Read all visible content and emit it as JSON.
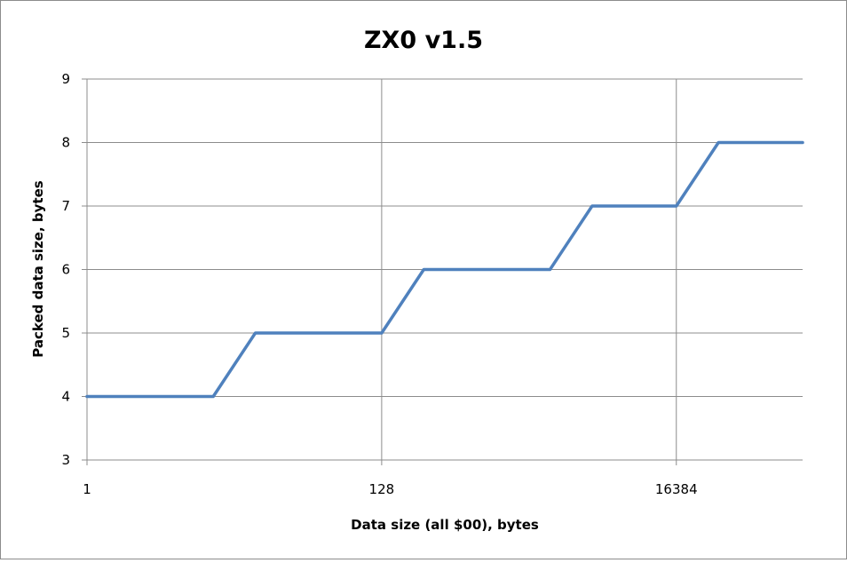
{
  "chart_data": {
    "type": "line",
    "title": "ZX0 v1.5",
    "xlabel": "Data size (all $00), bytes",
    "ylabel": "Packed data size, bytes",
    "x_scale": "log2",
    "xlim": [
      1,
      131072
    ],
    "ylim": [
      3,
      9
    ],
    "yticks": [
      3,
      4,
      5,
      6,
      7,
      8,
      9
    ],
    "xticks": [
      {
        "value": 1,
        "label": "1"
      },
      {
        "value": 128,
        "label": "128"
      },
      {
        "value": 16384,
        "label": "16384"
      }
    ],
    "grid": true,
    "legend": "none",
    "line_color": "#4f81bd",
    "series": [
      {
        "x": [
          1,
          8,
          16,
          128,
          256,
          2048,
          4096,
          16384,
          32768,
          131072
        ],
        "y": [
          4,
          4,
          5,
          5,
          6,
          6,
          7,
          7,
          8,
          8
        ]
      }
    ]
  }
}
